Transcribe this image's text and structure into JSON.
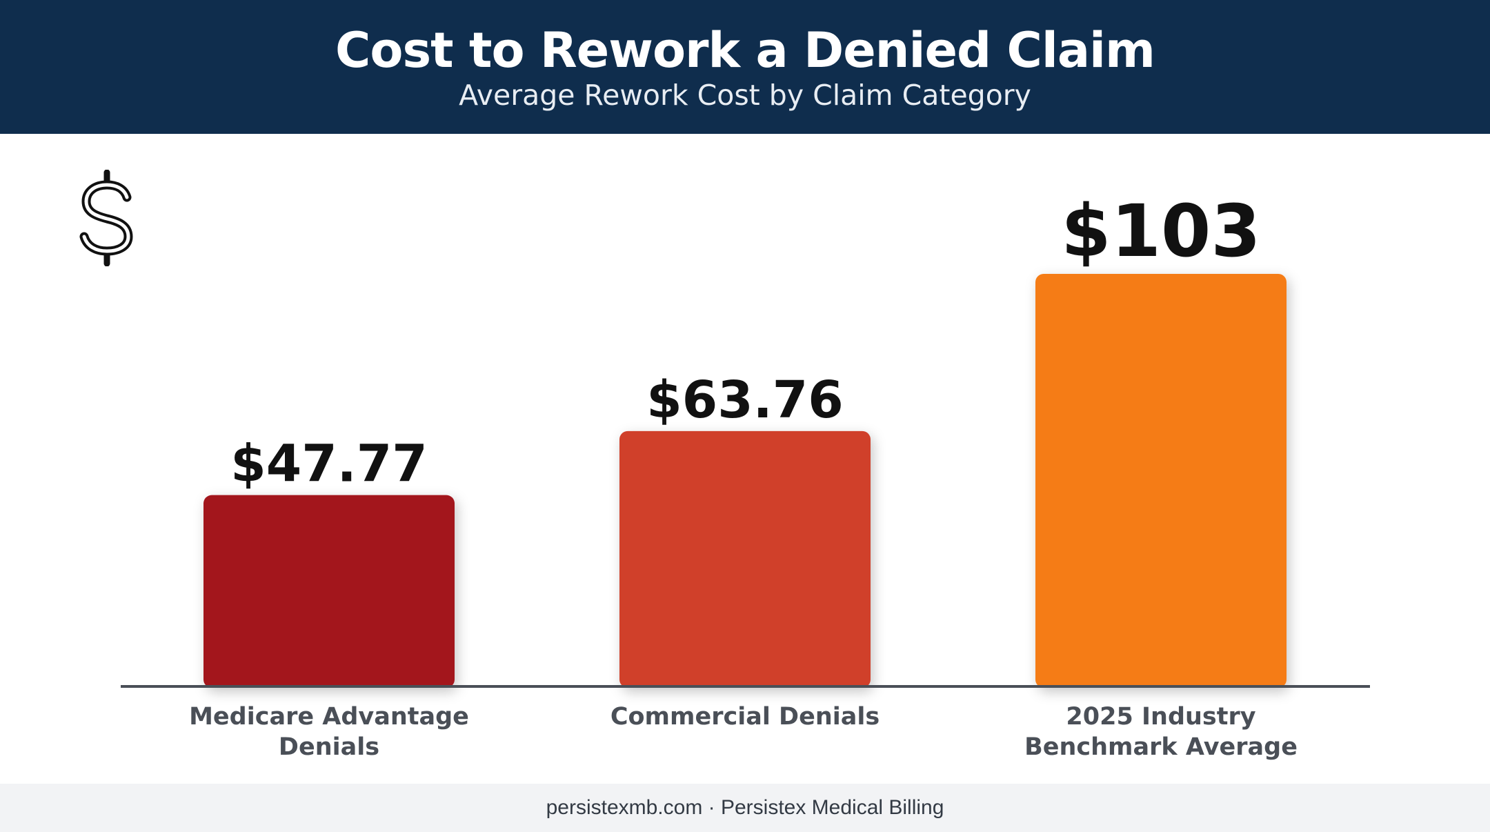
{
  "header": {
    "title": "Cost to Rework a Denied Claim",
    "subtitle": "Average Rework Cost by Claim Category"
  },
  "icon": {
    "name": "dollar-sign-icon"
  },
  "chart_data": {
    "type": "bar",
    "title": "Cost to Rework a Denied Claim",
    "subtitle": "Average Rework Cost by Claim Category",
    "xlabel": "",
    "ylabel": "",
    "ylim": [
      0,
      103
    ],
    "grid": false,
    "categories": [
      [
        "Medicare Advantage",
        "Denials"
      ],
      [
        "Commercial Denials"
      ],
      [
        "2025 Industry",
        "Benchmark Average"
      ]
    ],
    "values": [
      47.77,
      63.76,
      103
    ],
    "value_labels": [
      "$47.77",
      "$63.76",
      "$103"
    ],
    "colors": [
      "#a3121e",
      "#d0402a",
      "#f57c14"
    ]
  },
  "footer": {
    "text": "persistexmb.com · Persistex Medical Billing"
  }
}
